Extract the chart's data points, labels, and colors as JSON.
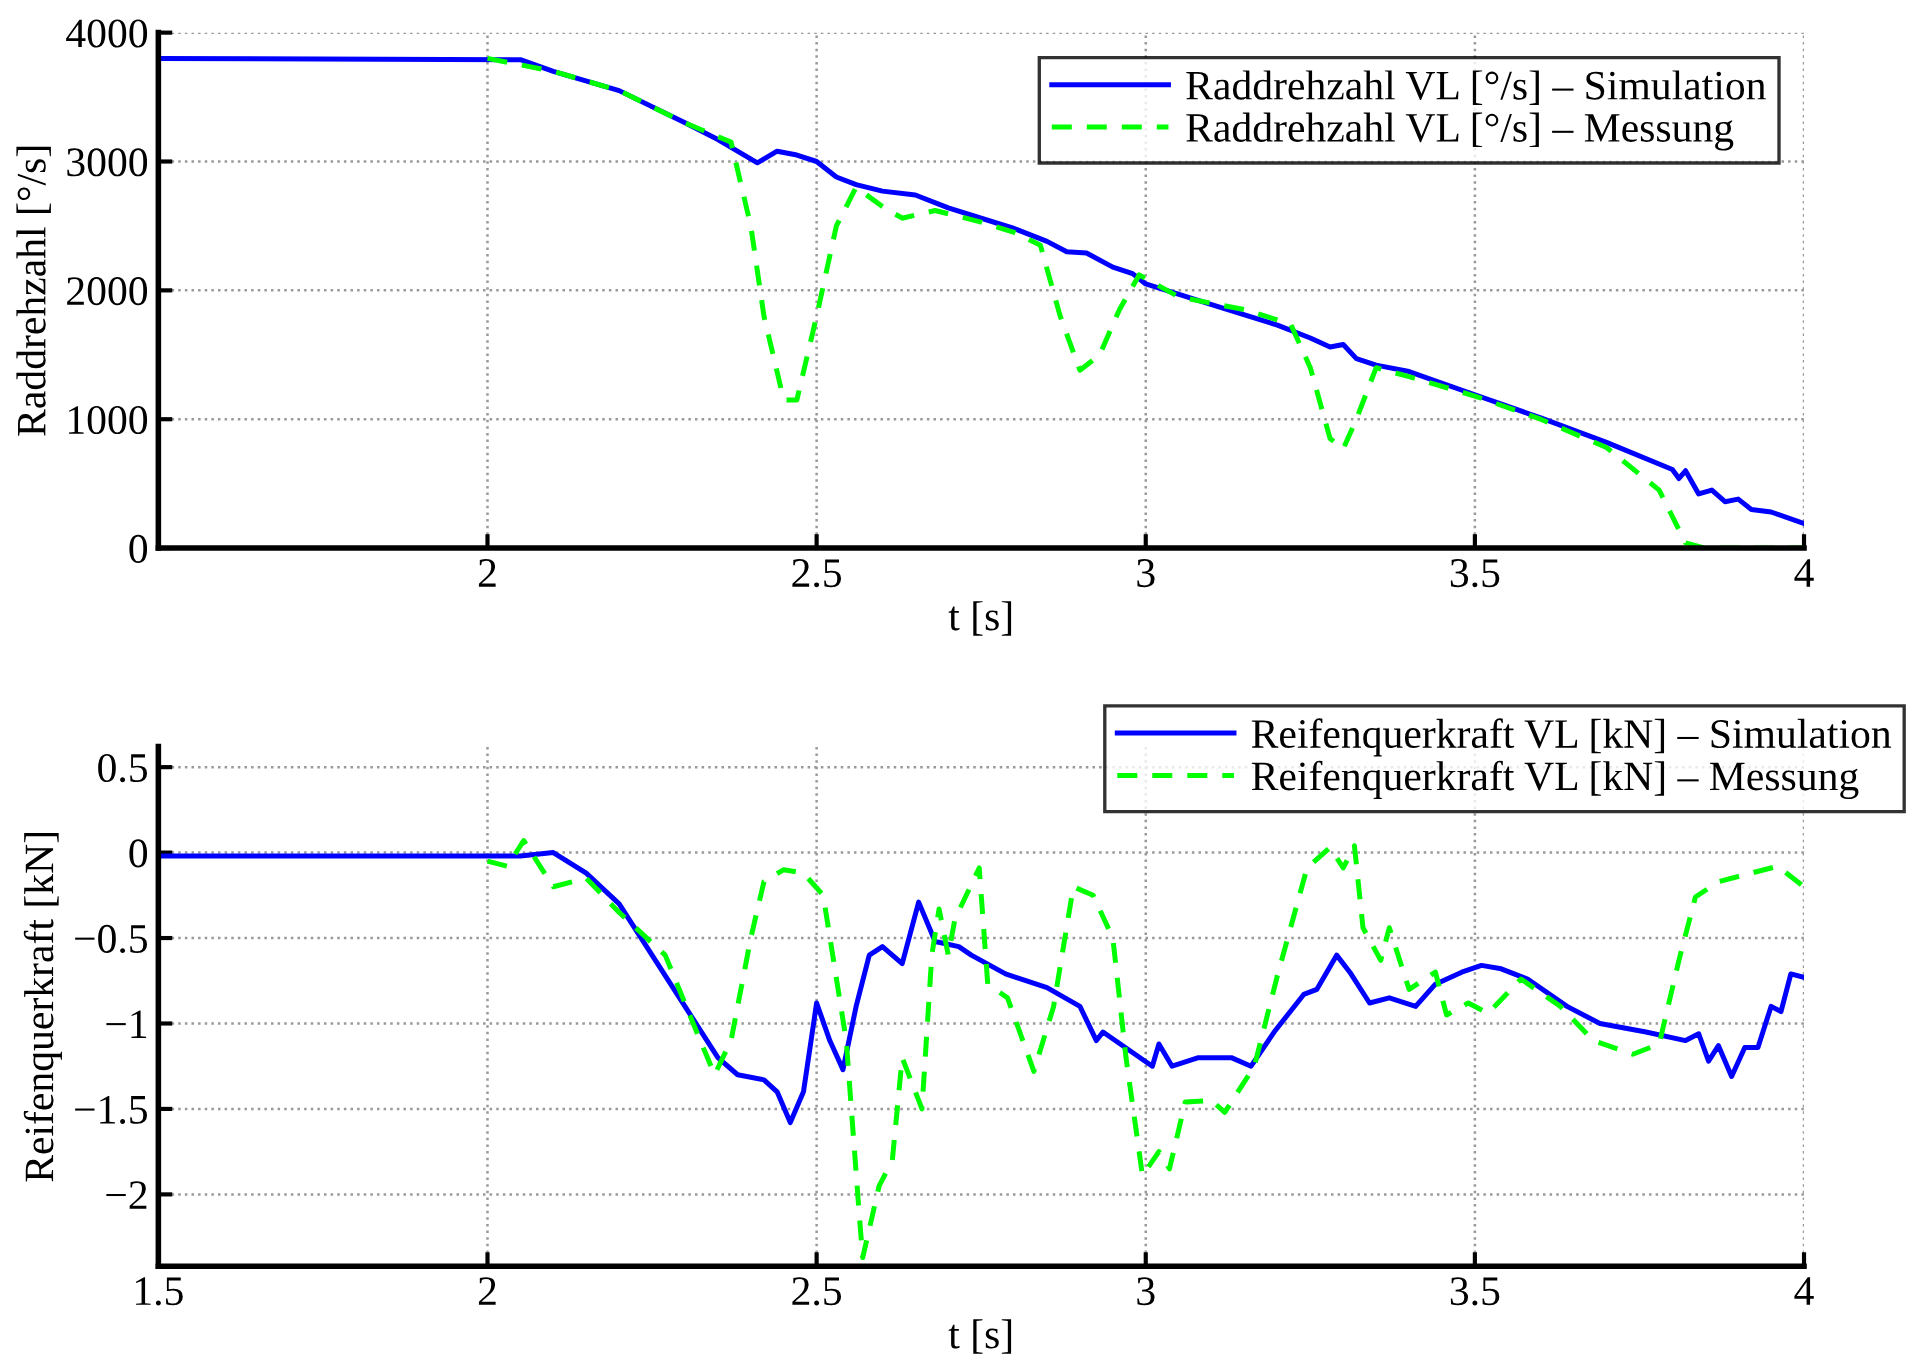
{
  "chart_data": [
    {
      "type": "line",
      "xlabel": "t [s]",
      "ylabel": "Raddrehzahl [°/s]",
      "xlim": [
        1.5,
        4
      ],
      "xticks": [
        2,
        2.5,
        3,
        3.5,
        4
      ],
      "ylim": [
        0,
        4000
      ],
      "yticks": [
        0,
        1000,
        2000,
        3000,
        4000
      ],
      "grid": true,
      "legend": "top right",
      "series": [
        {
          "name": "Raddrehzahl VL [°/s] – Simulation",
          "color": "#0000ff",
          "line_style": "solid",
          "x": [
            1.5,
            2.05,
            2.1,
            2.2,
            2.3,
            2.35,
            2.41,
            2.44,
            2.47,
            2.5,
            2.53,
            2.56,
            2.6,
            2.65,
            2.7,
            2.8,
            2.85,
            2.88,
            2.91,
            2.95,
            2.98,
            3.0,
            3.1,
            3.2,
            3.25,
            3.28,
            3.3,
            3.32,
            3.35,
            3.4,
            3.5,
            3.6,
            3.7,
            3.8,
            3.81,
            3.82,
            3.84,
            3.86,
            3.88,
            3.9,
            3.92,
            3.95,
            4.0
          ],
          "values": [
            3800,
            3790,
            3700,
            3550,
            3300,
            3170,
            2990,
            3080,
            3050,
            3000,
            2880,
            2820,
            2770,
            2740,
            2640,
            2480,
            2380,
            2300,
            2290,
            2180,
            2130,
            2050,
            1890,
            1730,
            1630,
            1560,
            1580,
            1470,
            1420,
            1370,
            1190,
            1010,
            820,
            610,
            540,
            600,
            420,
            450,
            360,
            380,
            300,
            280,
            190
          ]
        },
        {
          "name": "Raddrehzahl VL [°/s] – Messung",
          "color": "#00ff00",
          "line_style": "dashed",
          "x": [
            2.0,
            2.1,
            2.2,
            2.3,
            2.37,
            2.4,
            2.42,
            2.45,
            2.47,
            2.5,
            2.53,
            2.56,
            2.6,
            2.63,
            2.68,
            2.75,
            2.8,
            2.84,
            2.87,
            2.9,
            2.93,
            2.96,
            2.99,
            3.05,
            3.15,
            3.22,
            3.25,
            3.28,
            3.3,
            3.32,
            3.35,
            3.4,
            3.5,
            3.6,
            3.7,
            3.78,
            3.82,
            3.85,
            4.0
          ],
          "values": [
            3800,
            3700,
            3550,
            3300,
            3150,
            2500,
            1800,
            1150,
            1150,
            1800,
            2500,
            2800,
            2650,
            2560,
            2620,
            2530,
            2450,
            2350,
            1800,
            1380,
            1500,
            1850,
            2120,
            1950,
            1850,
            1740,
            1400,
            850,
            770,
            1000,
            1400,
            1330,
            1180,
            1000,
            780,
            450,
            40,
            0,
            0
          ]
        }
      ]
    },
    {
      "type": "line",
      "xlabel": "t [s]",
      "ylabel": "Reifenquerkraft [kN]",
      "xlim": [
        1.5,
        4
      ],
      "xticks": [
        1.5,
        2,
        2.5,
        3,
        3.5,
        4
      ],
      "ylim": [
        -2.42,
        0.62
      ],
      "yticks": [
        {
          "value": -2,
          "label": "−2"
        },
        {
          "value": -1.5,
          "label": "−1.5"
        },
        {
          "value": -1,
          "label": "−1"
        },
        {
          "value": -0.5,
          "label": "−0.5"
        },
        0,
        0.5
      ],
      "grid": true,
      "legend": "top right",
      "series": [
        {
          "name": "Reifenquerkraft VL [kN] – Simulation",
          "color": "#0000ff",
          "line_style": "solid",
          "x": [
            1.5,
            2.05,
            2.1,
            2.15,
            2.2,
            2.25,
            2.3,
            2.35,
            2.38,
            2.42,
            2.44,
            2.46,
            2.48,
            2.5,
            2.52,
            2.54,
            2.56,
            2.58,
            2.6,
            2.63,
            2.655,
            2.68,
            2.716,
            2.735,
            2.787,
            2.85,
            2.9,
            2.925,
            2.935,
            3.01,
            3.02,
            3.04,
            3.08,
            3.13,
            3.16,
            3.195,
            3.24,
            3.26,
            3.29,
            3.31,
            3.34,
            3.37,
            3.41,
            3.44,
            3.48,
            3.51,
            3.54,
            3.58,
            3.64,
            3.69,
            3.76,
            3.82,
            3.84,
            3.855,
            3.87,
            3.89,
            3.91,
            3.93,
            3.95,
            3.965,
            3.98,
            4.0
          ],
          "values": [
            -0.02,
            -0.02,
            0.0,
            -0.12,
            -0.3,
            -0.6,
            -0.9,
            -1.2,
            -1.3,
            -1.33,
            -1.4,
            -1.58,
            -1.4,
            -0.88,
            -1.1,
            -1.27,
            -0.9,
            -0.6,
            -0.55,
            -0.65,
            -0.29,
            -0.52,
            -0.55,
            -0.6,
            -0.71,
            -0.79,
            -0.9,
            -1.1,
            -1.05,
            -1.25,
            -1.12,
            -1.25,
            -1.2,
            -1.2,
            -1.25,
            -1.05,
            -0.83,
            -0.8,
            -0.6,
            -0.7,
            -0.88,
            -0.85,
            -0.9,
            -0.77,
            -0.7,
            -0.66,
            -0.68,
            -0.74,
            -0.9,
            -1.0,
            -1.05,
            -1.1,
            -1.06,
            -1.22,
            -1.13,
            -1.31,
            -1.14,
            -1.14,
            -0.9,
            -0.93,
            -0.71,
            -0.73
          ]
        },
        {
          "name": "Reifenquerkraft VL [kN] – Messung",
          "color": "#00ff00",
          "line_style": "dashed",
          "x": [
            2.0,
            2.03,
            2.055,
            2.1,
            2.15,
            2.2,
            2.27,
            2.32,
            2.345,
            2.37,
            2.4,
            2.42,
            2.45,
            2.48,
            2.51,
            2.545,
            2.565,
            2.57,
            2.595,
            2.615,
            2.63,
            2.66,
            2.675,
            2.686,
            2.7,
            2.71,
            2.747,
            2.76,
            2.79,
            2.83,
            2.86,
            2.89,
            2.92,
            2.95,
            2.97,
            2.995,
            3.02,
            3.036,
            3.06,
            3.1,
            3.12,
            3.165,
            3.2,
            3.245,
            3.28,
            3.3,
            3.317,
            3.33,
            3.357,
            3.37,
            3.4,
            3.44,
            3.457,
            3.49,
            3.52,
            3.57,
            3.63,
            3.68,
            3.74,
            3.78,
            3.81,
            3.835,
            3.87,
            3.96,
            4.0
          ],
          "values": [
            -0.05,
            -0.08,
            0.07,
            -0.2,
            -0.15,
            -0.35,
            -0.6,
            -1.07,
            -1.3,
            -1.1,
            -0.5,
            -0.17,
            -0.1,
            -0.12,
            -0.25,
            -1.1,
            -2.13,
            -2.37,
            -1.95,
            -1.8,
            -1.2,
            -1.5,
            -0.6,
            -0.33,
            -0.6,
            -0.39,
            -0.09,
            -0.77,
            -0.85,
            -1.28,
            -0.9,
            -0.2,
            -0.25,
            -0.5,
            -1.2,
            -1.89,
            -1.75,
            -1.85,
            -1.46,
            -1.45,
            -1.52,
            -1.25,
            -0.72,
            -0.09,
            0.03,
            -0.09,
            0.04,
            -0.44,
            -0.63,
            -0.44,
            -0.8,
            -0.7,
            -0.95,
            -0.88,
            -0.94,
            -0.74,
            -0.9,
            -1.1,
            -1.18,
            -1.12,
            -0.63,
            -0.26,
            -0.17,
            -0.08,
            -0.2
          ]
        }
      ]
    }
  ]
}
